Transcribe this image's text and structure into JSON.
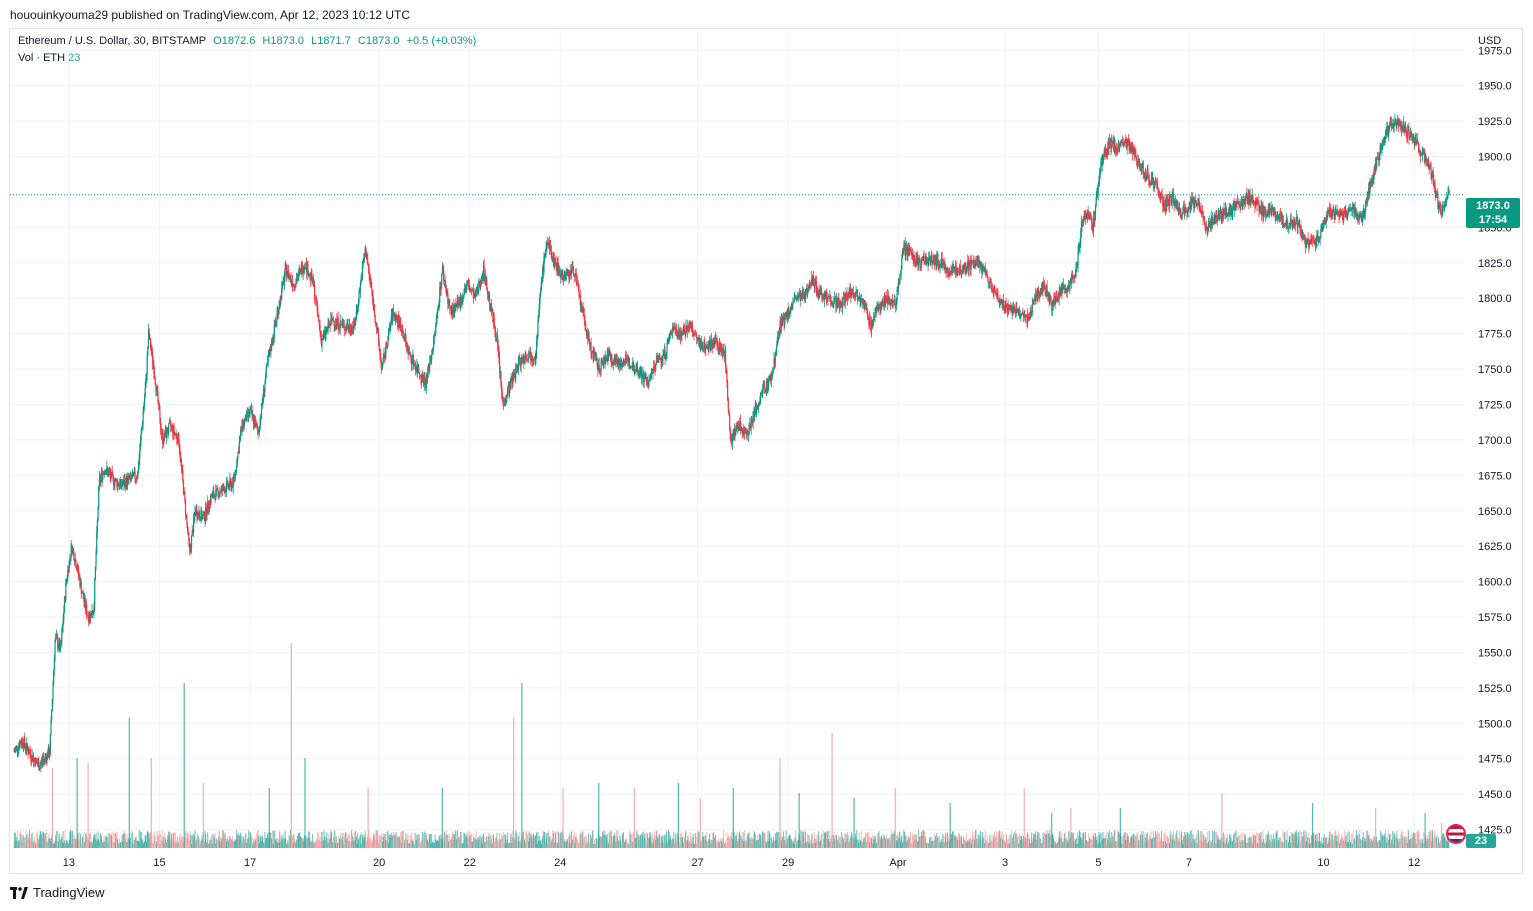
{
  "header": {
    "published_line": "hououinkyouma29 published on TradingView.com, Apr 12, 2023 10:12 UTC"
  },
  "legend": {
    "symbol": "Ethereum / U.S. Dollar, 30, BITSTAMP",
    "open": "O1872.6",
    "high": "H1873.0",
    "low": "L1871.7",
    "close": "C1873.0",
    "change": "+0.5 (+0.03%)",
    "vol_label": "Vol · ETH",
    "vol_value": "23"
  },
  "currency": "USD",
  "last_price": {
    "price": "1873.0",
    "countdown": "17:54"
  },
  "vol_tag": "23",
  "footer": {
    "brand": "TradingView"
  },
  "colors": {
    "up": "#089981",
    "down": "#f23645",
    "vol_up": "#26a69a",
    "vol_down": "#ef9a9a",
    "grid": "#f0f3fa"
  },
  "chart_data": {
    "type": "candlestick",
    "symbol": "ETHUSD",
    "interval": "30",
    "y_ticks": [
      1975,
      1950,
      1925,
      1900,
      1850,
      1825,
      1800,
      1775,
      1750,
      1725,
      1700,
      1675,
      1650,
      1625,
      1600,
      1575,
      1550,
      1525,
      1500,
      1475,
      1450,
      1425
    ],
    "ylim": [
      1412,
      1990
    ],
    "x_tick_labels": [
      "13",
      "15",
      "17",
      "20",
      "22",
      "24",
      "27",
      "29",
      "Apr",
      "3",
      "5",
      "7",
      "10",
      "12"
    ],
    "x_tick_slot": [
      2,
      5.3,
      8.6,
      13.3,
      16.6,
      19.9,
      24.9,
      28.2,
      32.2,
      36.1,
      39.5,
      42.8,
      47.7,
      51
    ],
    "slots": 53,
    "price_path": [
      [
        0,
        1480
      ],
      [
        0.3,
        1488
      ],
      [
        0.6,
        1478
      ],
      [
        0.9,
        1470
      ],
      [
        1.1,
        1475
      ],
      [
        1.3,
        1480
      ],
      [
        1.5,
        1560
      ],
      [
        1.7,
        1552
      ],
      [
        1.9,
        1600
      ],
      [
        2.1,
        1625
      ],
      [
        2.3,
        1610
      ],
      [
        2.5,
        1590
      ],
      [
        2.7,
        1575
      ],
      [
        2.9,
        1580
      ],
      [
        3.1,
        1670
      ],
      [
        3.3,
        1680
      ],
      [
        3.6,
        1672
      ],
      [
        3.9,
        1668
      ],
      [
        4.2,
        1672
      ],
      [
        4.5,
        1675
      ],
      [
        4.8,
        1740
      ],
      [
        4.9,
        1775
      ],
      [
        5.1,
        1750
      ],
      [
        5.4,
        1700
      ],
      [
        5.7,
        1710
      ],
      [
        6.0,
        1700
      ],
      [
        6.2,
        1660
      ],
      [
        6.4,
        1620
      ],
      [
        6.6,
        1650
      ],
      [
        6.9,
        1645
      ],
      [
        7.2,
        1660
      ],
      [
        7.6,
        1665
      ],
      [
        8.0,
        1670
      ],
      [
        8.3,
        1710
      ],
      [
        8.6,
        1720
      ],
      [
        8.9,
        1705
      ],
      [
        9.2,
        1750
      ],
      [
        9.6,
        1790
      ],
      [
        9.9,
        1820
      ],
      [
        10.2,
        1810
      ],
      [
        10.6,
        1825
      ],
      [
        10.9,
        1810
      ],
      [
        11.2,
        1770
      ],
      [
        11.6,
        1785
      ],
      [
        12.0,
        1780
      ],
      [
        12.4,
        1780
      ],
      [
        12.8,
        1835
      ],
      [
        13.1,
        1795
      ],
      [
        13.4,
        1750
      ],
      [
        13.8,
        1790
      ],
      [
        14.1,
        1780
      ],
      [
        14.4,
        1760
      ],
      [
        14.7,
        1750
      ],
      [
        15.0,
        1740
      ],
      [
        15.3,
        1770
      ],
      [
        15.6,
        1820
      ],
      [
        15.9,
        1790
      ],
      [
        16.2,
        1795
      ],
      [
        16.5,
        1810
      ],
      [
        16.8,
        1800
      ],
      [
        17.1,
        1820
      ],
      [
        17.4,
        1790
      ],
      [
        17.6,
        1770
      ],
      [
        17.8,
        1725
      ],
      [
        18.1,
        1740
      ],
      [
        18.4,
        1755
      ],
      [
        18.7,
        1760
      ],
      [
        19.0,
        1760
      ],
      [
        19.2,
        1810
      ],
      [
        19.4,
        1840
      ],
      [
        19.7,
        1825
      ],
      [
        20.0,
        1815
      ],
      [
        20.4,
        1820
      ],
      [
        20.7,
        1790
      ],
      [
        21.0,
        1765
      ],
      [
        21.3,
        1750
      ],
      [
        21.6,
        1760
      ],
      [
        22.0,
        1755
      ],
      [
        22.4,
        1755
      ],
      [
        22.8,
        1748
      ],
      [
        23.1,
        1740
      ],
      [
        23.4,
        1755
      ],
      [
        23.7,
        1760
      ],
      [
        24.0,
        1780
      ],
      [
        24.3,
        1775
      ],
      [
        24.6,
        1780
      ],
      [
        24.9,
        1770
      ],
      [
        25.2,
        1765
      ],
      [
        25.5,
        1770
      ],
      [
        25.9,
        1760
      ],
      [
        26.1,
        1700
      ],
      [
        26.4,
        1710
      ],
      [
        26.7,
        1705
      ],
      [
        27.0,
        1720
      ],
      [
        27.3,
        1735
      ],
      [
        27.6,
        1745
      ],
      [
        27.9,
        1780
      ],
      [
        28.2,
        1790
      ],
      [
        28.5,
        1800
      ],
      [
        28.8,
        1800
      ],
      [
        29.0,
        1815
      ],
      [
        29.3,
        1805
      ],
      [
        29.7,
        1800
      ],
      [
        30.1,
        1795
      ],
      [
        30.5,
        1805
      ],
      [
        30.9,
        1800
      ],
      [
        31.2,
        1780
      ],
      [
        31.5,
        1795
      ],
      [
        31.8,
        1800
      ],
      [
        32.1,
        1795
      ],
      [
        32.4,
        1835
      ],
      [
        32.7,
        1830
      ],
      [
        33.0,
        1825
      ],
      [
        33.4,
        1828
      ],
      [
        33.8,
        1825
      ],
      [
        34.1,
        1818
      ],
      [
        34.4,
        1820
      ],
      [
        34.7,
        1822
      ],
      [
        35.0,
        1825
      ],
      [
        35.3,
        1820
      ],
      [
        35.6,
        1810
      ],
      [
        35.8,
        1800
      ],
      [
        36.1,
        1795
      ],
      [
        36.5,
        1790
      ],
      [
        36.9,
        1785
      ],
      [
        37.2,
        1800
      ],
      [
        37.5,
        1810
      ],
      [
        37.8,
        1795
      ],
      [
        38.1,
        1805
      ],
      [
        38.4,
        1808
      ],
      [
        38.7,
        1820
      ],
      [
        38.9,
        1855
      ],
      [
        39.1,
        1860
      ],
      [
        39.3,
        1850
      ],
      [
        39.6,
        1895
      ],
      [
        39.9,
        1910
      ],
      [
        40.2,
        1905
      ],
      [
        40.5,
        1910
      ],
      [
        40.8,
        1905
      ],
      [
        41.0,
        1895
      ],
      [
        41.3,
        1885
      ],
      [
        41.6,
        1880
      ],
      [
        41.9,
        1865
      ],
      [
        42.2,
        1870
      ],
      [
        42.5,
        1860
      ],
      [
        42.8,
        1865
      ],
      [
        43.1,
        1870
      ],
      [
        43.4,
        1850
      ],
      [
        43.7,
        1855
      ],
      [
        44.0,
        1860
      ],
      [
        44.3,
        1862
      ],
      [
        44.6,
        1865
      ],
      [
        44.9,
        1872
      ],
      [
        45.2,
        1868
      ],
      [
        45.5,
        1860
      ],
      [
        45.8,
        1862
      ],
      [
        46.1,
        1855
      ],
      [
        46.4,
        1852
      ],
      [
        46.7,
        1855
      ],
      [
        47.0,
        1840
      ],
      [
        47.3,
        1838
      ],
      [
        47.6,
        1845
      ],
      [
        47.9,
        1862
      ],
      [
        48.2,
        1860
      ],
      [
        48.5,
        1858
      ],
      [
        48.8,
        1862
      ],
      [
        49.1,
        1855
      ],
      [
        49.4,
        1880
      ],
      [
        49.7,
        1900
      ],
      [
        50.0,
        1918
      ],
      [
        50.3,
        1925
      ],
      [
        50.6,
        1920
      ],
      [
        50.9,
        1915
      ],
      [
        51.2,
        1905
      ],
      [
        51.5,
        1895
      ],
      [
        51.7,
        1885
      ],
      [
        51.9,
        1862
      ],
      [
        52.1,
        1865
      ],
      [
        52.3,
        1873
      ]
    ],
    "volume_spikes": [
      [
        1.4,
        80
      ],
      [
        2.3,
        90
      ],
      [
        2.7,
        85
      ],
      [
        4.2,
        130
      ],
      [
        5.0,
        90
      ],
      [
        6.2,
        165
      ],
      [
        6.9,
        65
      ],
      [
        9.3,
        60
      ],
      [
        10.1,
        205
      ],
      [
        10.6,
        90
      ],
      [
        12.9,
        60
      ],
      [
        15.6,
        60
      ],
      [
        18.2,
        130
      ],
      [
        18.5,
        165
      ],
      [
        20.0,
        60
      ],
      [
        21.3,
        65
      ],
      [
        22.6,
        60
      ],
      [
        24.2,
        65
      ],
      [
        25.0,
        50
      ],
      [
        26.2,
        60
      ],
      [
        27.9,
        90
      ],
      [
        28.6,
        55
      ],
      [
        29.8,
        115
      ],
      [
        30.6,
        50
      ],
      [
        32.1,
        60
      ],
      [
        34.1,
        45
      ],
      [
        36.8,
        60
      ],
      [
        37.8,
        35
      ],
      [
        38.5,
        40
      ],
      [
        40.3,
        40
      ],
      [
        44.0,
        55
      ],
      [
        47.3,
        45
      ],
      [
        49.6,
        40
      ],
      [
        51.4,
        35
      ],
      [
        52.0,
        25
      ]
    ],
    "volume_ymax": 220,
    "last_price": 1873.0,
    "title": "Ethereum / U.S. Dollar, 30, BITSTAMP",
    "ylabel": "USD",
    "grid": true
  }
}
